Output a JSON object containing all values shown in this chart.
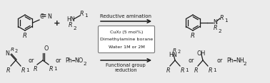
{
  "bg_color": "#ebebeb",
  "box_color": "#ffffff",
  "box_edge_color": "#777777",
  "text_color": "#1a1a1a",
  "fig_width": 3.78,
  "fig_height": 1.17,
  "dpi": 100,
  "box_lines": [
    "CuX₂ (5 mol%)",
    "Dimethylamine borane",
    "Water 1M or 2M"
  ],
  "top_arrow_label": "Reductive amination",
  "bottom_arrow_label": "Functional group\nreduction"
}
